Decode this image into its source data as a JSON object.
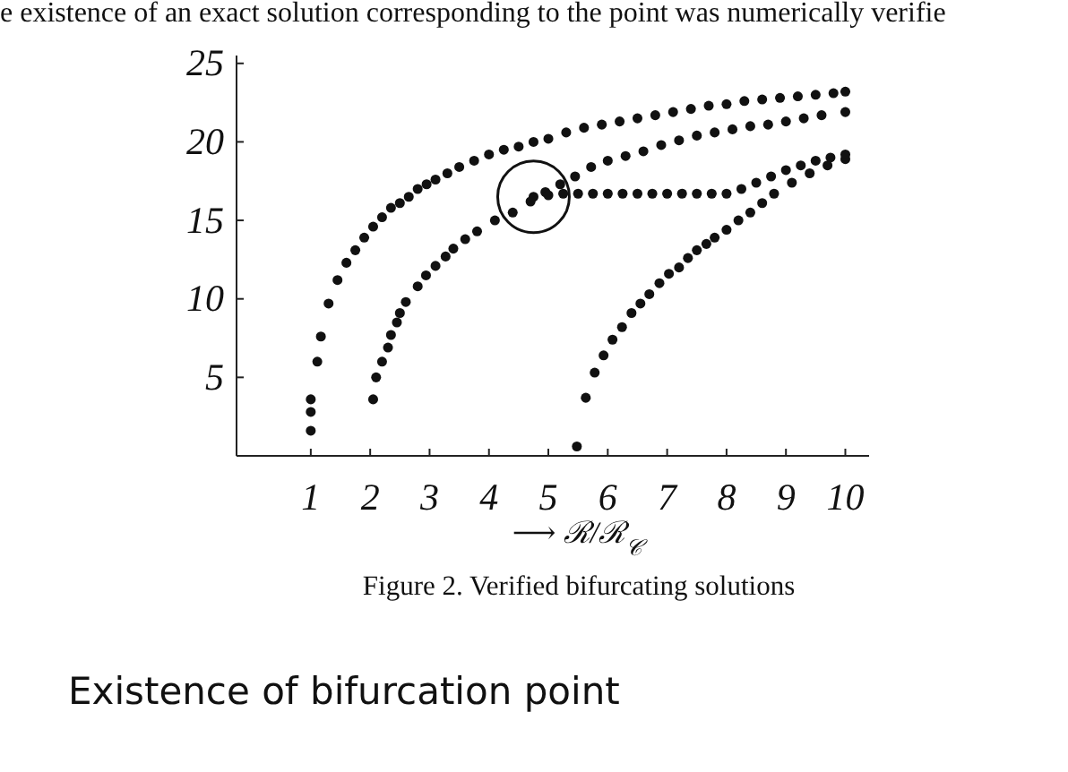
{
  "chart_data": {
    "type": "scatter",
    "xlabel": "⟶ ℛ/ℛ$_{𝒞}$",
    "xlim": [
      -0.25,
      10.4
    ],
    "ylim": [
      0,
      25.5
    ],
    "xticks": [
      1,
      2,
      3,
      4,
      5,
      6,
      7,
      8,
      9,
      10
    ],
    "yticks": [
      5,
      10,
      15,
      20,
      25
    ],
    "marker": "circle",
    "grid": false,
    "annotations": [
      "e existence of an exact solution corresponding to the point was numerically verifie",
      "Figure 2.  Verified bifurcating solutions",
      "Existence of bifurcation point"
    ],
    "series": [
      {
        "color": "#111111",
        "x": [
          1,
          1,
          1,
          1.11,
          1.17,
          1.3,
          1.45,
          1.6,
          1.75,
          1.9,
          2.05,
          2.2,
          2.35,
          2.5,
          2.65,
          2.8,
          2.95,
          3.1,
          3.3,
          3.5,
          3.75,
          4,
          4.25,
          4.5,
          4.75,
          5,
          5.3,
          5.6,
          5.9,
          6.2,
          6.5,
          6.8,
          7.1,
          7.4,
          7.7,
          8,
          8.3,
          8.6,
          8.9,
          9.2,
          9.5,
          9.8,
          10
        ],
        "values": [
          1.6,
          2.8,
          3.6,
          6,
          7.6,
          9.7,
          11.2,
          12.3,
          13.1,
          13.9,
          14.6,
          15.2,
          15.8,
          16.1,
          16.5,
          17,
          17.3,
          17.6,
          18,
          18.4,
          18.8,
          19.2,
          19.5,
          19.7,
          20,
          20.2,
          20.6,
          20.9,
          21.1,
          21.3,
          21.5,
          21.7,
          21.9,
          22.1,
          22.3,
          22.4,
          22.6,
          22.7,
          22.8,
          22.9,
          23,
          23.1,
          23.2
        ]
      },
      {
        "color": "#111111",
        "x": [
          2.05,
          2.1,
          2.2,
          2.3,
          2.35,
          2.45,
          2.5,
          2.6,
          2.8,
          2.94,
          3.1,
          3.27,
          3.4,
          3.6,
          3.8,
          4.1,
          4.4,
          4.7,
          4.95,
          5.2,
          5.45,
          5.72,
          6,
          6.3,
          6.6,
          6.9,
          7.2,
          7.5,
          7.8,
          8.1,
          8.4,
          8.7,
          9,
          9.3,
          9.6,
          10
        ],
        "values": [
          3.6,
          5,
          6,
          6.9,
          7.7,
          8.5,
          9.1,
          9.8,
          10.8,
          11.5,
          12.1,
          12.7,
          13.2,
          13.8,
          14.3,
          15,
          15.5,
          16.2,
          16.8,
          17.3,
          17.8,
          18.4,
          18.8,
          19.1,
          19.4,
          19.8,
          20.1,
          20.4,
          20.6,
          20.8,
          21,
          21.1,
          21.3,
          21.5,
          21.7,
          21.9
        ]
      },
      {
        "color": "#111111",
        "x": [
          4.75,
          5,
          5.25,
          5.5,
          5.75,
          6,
          6.25,
          6.5,
          6.75,
          7,
          7.25,
          7.5,
          7.75,
          8,
          8.25,
          8.5,
          8.75,
          9,
          9.25,
          9.5,
          9.75,
          10
        ],
        "values": [
          16.5,
          16.6,
          16.7,
          16.7,
          16.7,
          16.7,
          16.7,
          16.7,
          16.7,
          16.7,
          16.7,
          16.7,
          16.7,
          16.7,
          17,
          17.4,
          17.8,
          18.2,
          18.5,
          18.8,
          19,
          19.2
        ]
      },
      {
        "color": "#111111",
        "x": [
          5.48,
          5.63,
          5.78,
          5.93,
          6.08,
          6.24,
          6.4,
          6.55,
          6.7,
          6.87,
          7.03,
          7.2,
          7.35,
          7.5,
          7.66,
          7.8,
          8,
          8.2,
          8.4,
          8.6,
          8.8,
          9.1,
          9.4,
          9.7,
          10
        ],
        "values": [
          0.6,
          3.7,
          5.3,
          6.4,
          7.4,
          8.2,
          9.1,
          9.7,
          10.3,
          11,
          11.6,
          12,
          12.6,
          13.1,
          13.5,
          13.9,
          14.4,
          15,
          15.5,
          16.1,
          16.7,
          17.4,
          18,
          18.5,
          18.9
        ]
      }
    ]
  }
}
